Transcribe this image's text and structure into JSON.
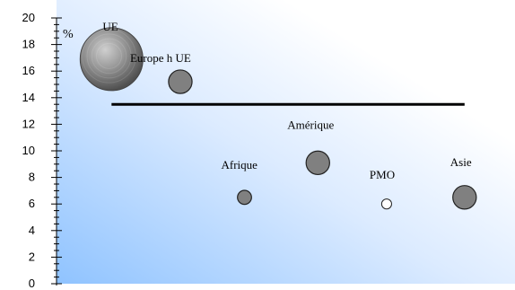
{
  "chart_data": {
    "type": "scatter",
    "title": "",
    "xlabel": "",
    "ylabel": "%",
    "ylim": [
      0,
      20
    ],
    "yticks": [
      0,
      2,
      4,
      6,
      8,
      10,
      12,
      14,
      16,
      18,
      20
    ],
    "xlim": [
      0,
      10
    ],
    "grid": false,
    "points": [
      {
        "label": "UE",
        "x": 1.2,
        "y": 16.9,
        "size": 100,
        "style": "large-gradient"
      },
      {
        "label": "Europe h UE",
        "x": 2.7,
        "y": 15.2,
        "size": 14,
        "style": "gray"
      },
      {
        "label": "Amérique",
        "x": 5.7,
        "y": 9.1,
        "size": 14,
        "style": "gray"
      },
      {
        "label": "Afrique",
        "x": 4.1,
        "y": 6.5,
        "size": 5,
        "style": "gray"
      },
      {
        "label": "PMO",
        "x": 7.2,
        "y": 6.0,
        "size": 2.5,
        "style": "hollow"
      },
      {
        "label": "Asie",
        "x": 8.9,
        "y": 6.5,
        "size": 14,
        "style": "gray"
      }
    ],
    "reference_line": {
      "y": 13.5,
      "x_start": 1.2,
      "x_end": 8.9
    }
  },
  "colors": {
    "axis": "#000000",
    "bubble_fill": "#808080",
    "bubble_stroke": "#222222",
    "background_start": "#8fc3ff",
    "background_end": "#ffffff"
  }
}
